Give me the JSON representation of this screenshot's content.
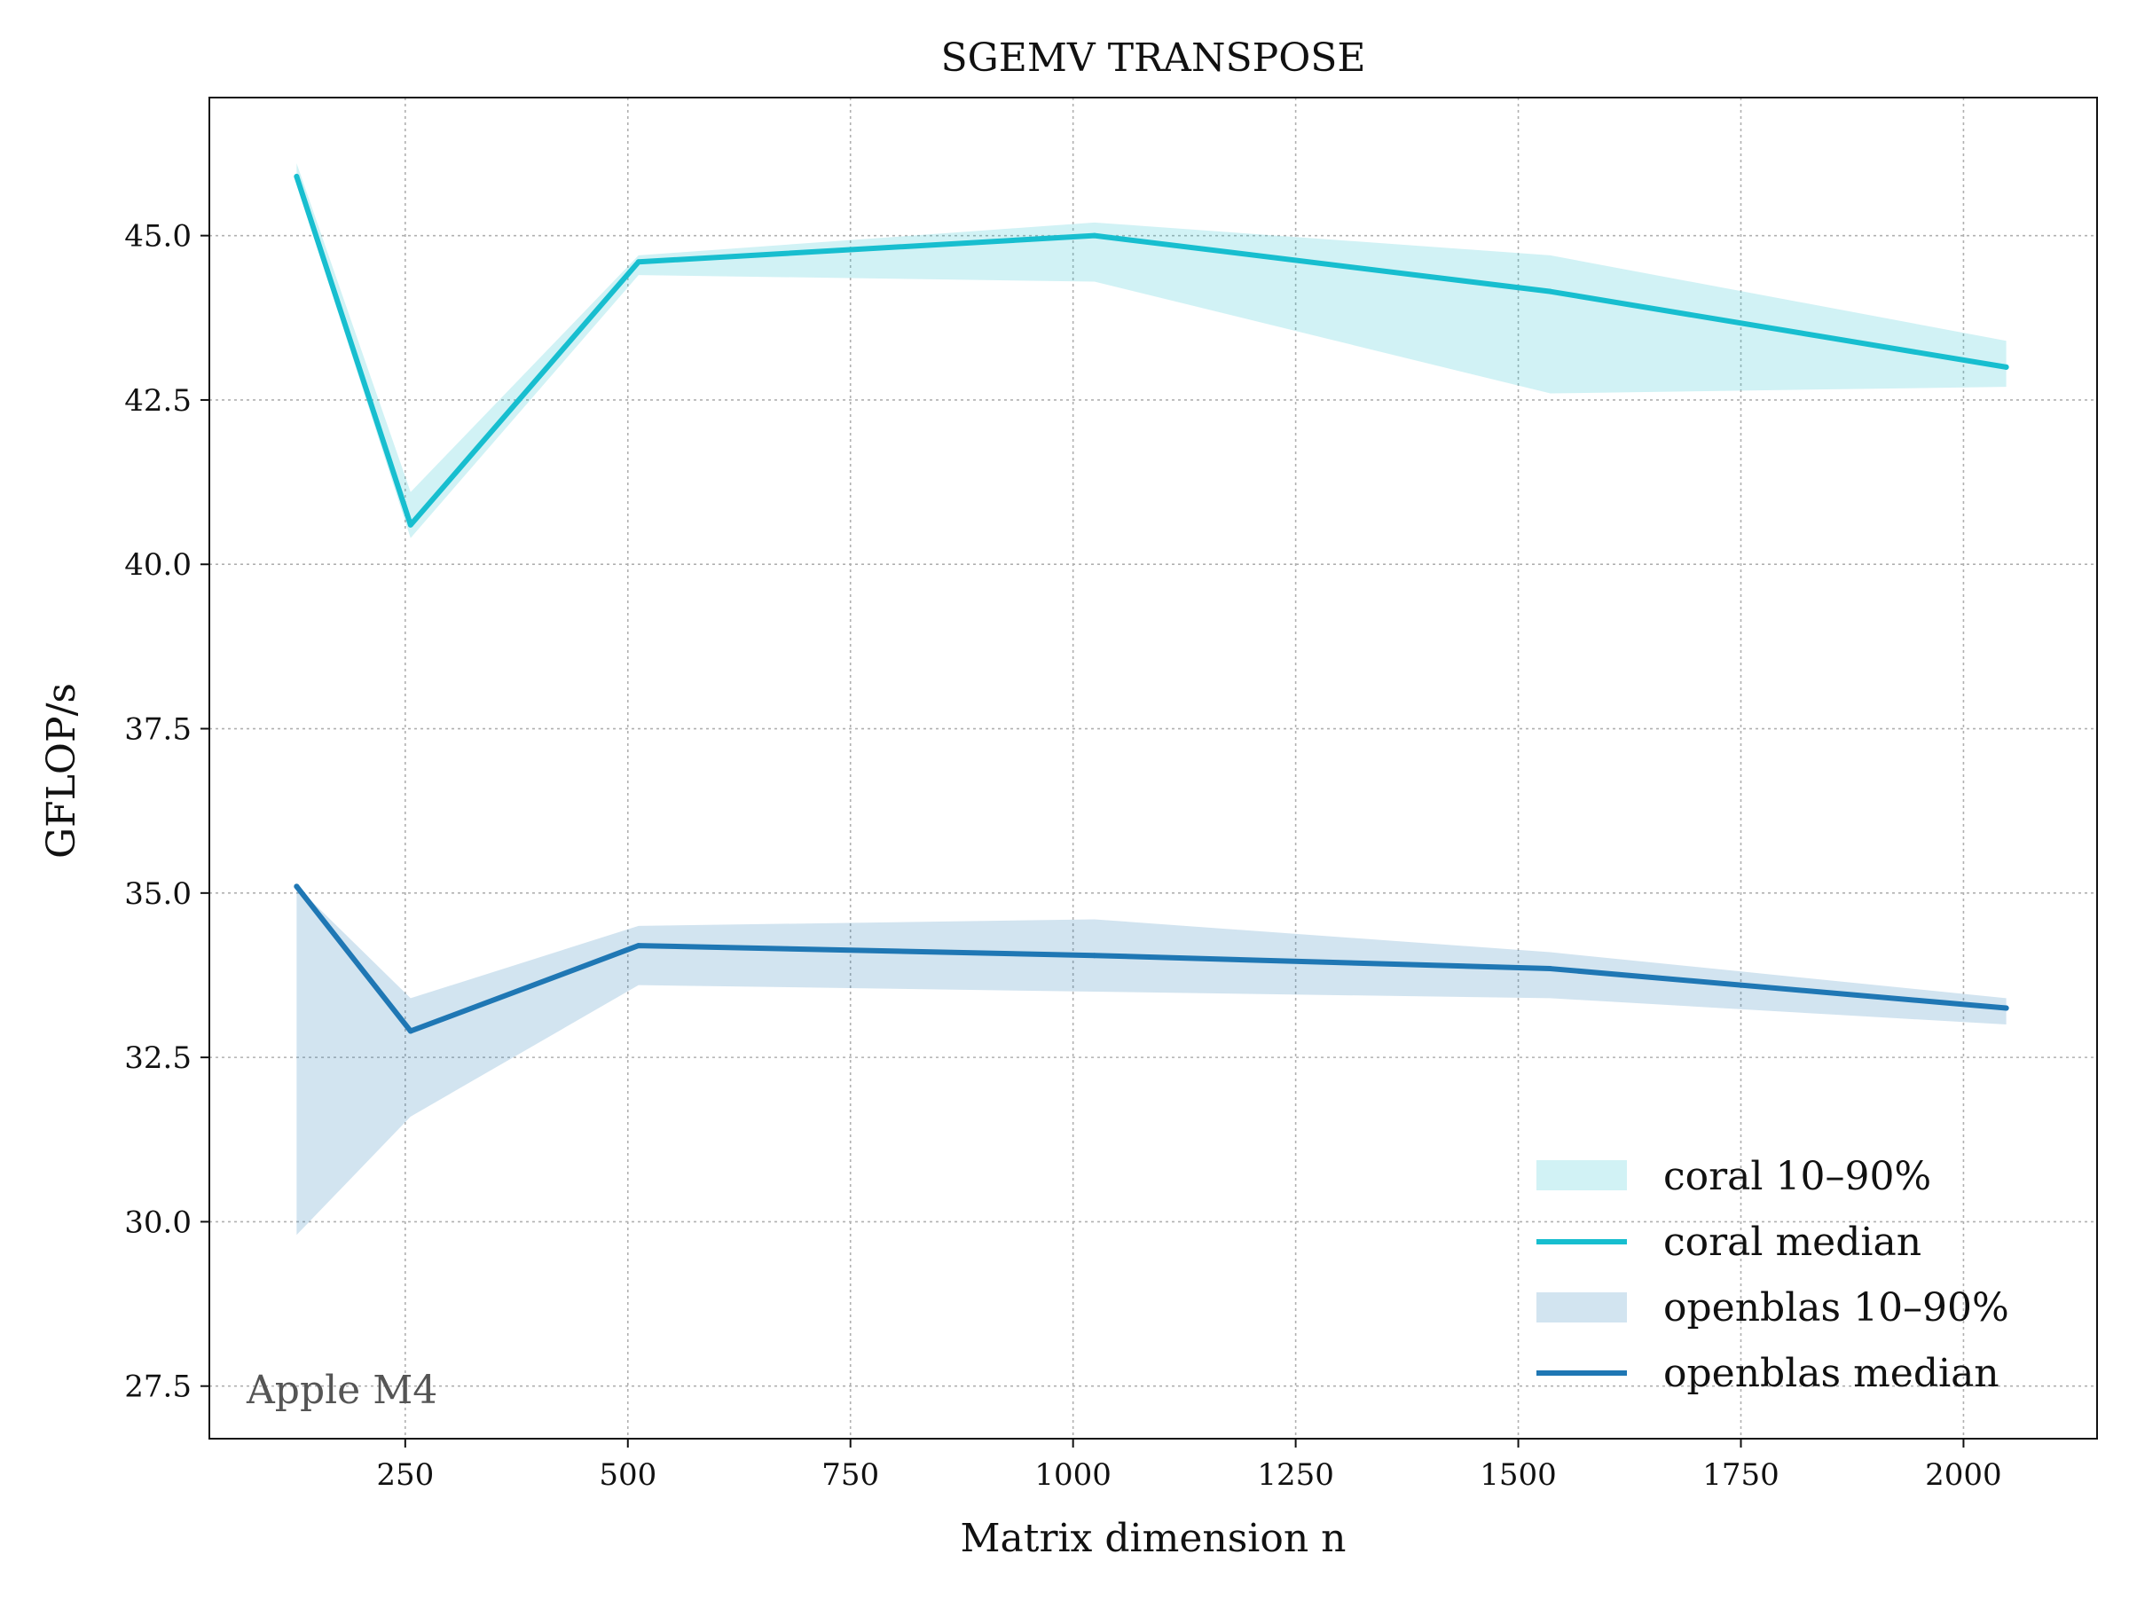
{
  "chart_data": {
    "type": "line",
    "title": "SGEMV TRANSPOSE",
    "xlabel": "Matrix dimension n",
    "ylabel": "GFLOP/s",
    "xlim": [
      30,
      2150
    ],
    "ylim": [
      26.7,
      47.1
    ],
    "xticks": [
      250,
      500,
      750,
      1000,
      1250,
      1500,
      1750,
      2000
    ],
    "xtick_labels": [
      "250",
      "500",
      "750",
      "1000",
      "1250",
      "1500",
      "1750",
      "2000"
    ],
    "yticks": [
      27.5,
      30.0,
      32.5,
      35.0,
      37.5,
      40.0,
      42.5,
      45.0
    ],
    "ytick_labels": [
      "27.5",
      "30.0",
      "32.5",
      "35.0",
      "37.5",
      "40.0",
      "42.5",
      "45.0"
    ],
    "grid": true,
    "legend_position": "lower-right",
    "annotation": "Apple M4",
    "x": [
      128,
      256,
      512,
      1024,
      1536,
      2048
    ],
    "series": [
      {
        "name": "coral 10–90%",
        "kind": "band",
        "color": "#17becf",
        "low": [
          45.8,
          40.4,
          44.4,
          44.3,
          42.6,
          42.7
        ],
        "high": [
          46.1,
          41.1,
          44.7,
          45.2,
          44.7,
          43.4
        ]
      },
      {
        "name": "coral median",
        "kind": "line",
        "color": "#17becf",
        "values": [
          45.9,
          40.6,
          44.6,
          45.0,
          44.15,
          43.0
        ]
      },
      {
        "name": "openblas 10–90%",
        "kind": "band",
        "color": "#1f77b4",
        "low": [
          29.8,
          31.6,
          33.6,
          33.5,
          33.4,
          33.0
        ],
        "high": [
          35.1,
          33.4,
          34.5,
          34.6,
          34.1,
          33.4
        ]
      },
      {
        "name": "openblas median",
        "kind": "line",
        "color": "#1f77b4",
        "values": [
          35.1,
          32.9,
          34.2,
          34.05,
          33.85,
          33.25
        ]
      }
    ]
  }
}
